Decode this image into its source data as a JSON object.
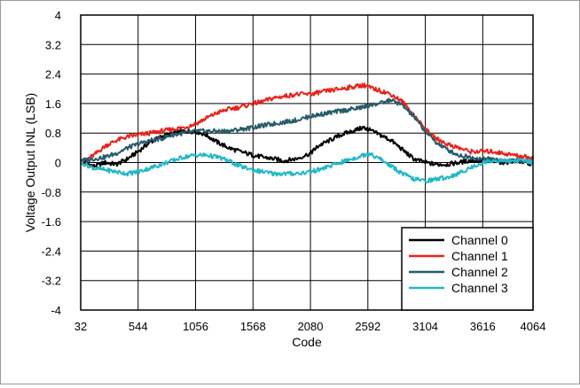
{
  "chart_data": {
    "type": "line",
    "title": "",
    "xlabel": "Code",
    "ylabel": "Voltage Output INL (LSB)",
    "xlim": [
      32,
      4064
    ],
    "ylim": [
      -4,
      4
    ],
    "x_ticks": [
      32,
      544,
      1056,
      1568,
      2080,
      2592,
      3104,
      3616,
      4064
    ],
    "y_ticks": [
      4,
      3.2,
      2.4,
      1.6,
      0.8,
      0,
      -0.8,
      -1.6,
      -2.4,
      -3.2,
      -4
    ],
    "x_tick_labels": [
      "32",
      "544",
      "1056",
      "1568",
      "2080",
      "2592",
      "3104",
      "3616",
      "4064"
    ],
    "y_tick_labels": [
      "4",
      "3.2",
      "2.4",
      "1.6",
      "0.8",
      "0",
      "-0.8",
      "-1.6",
      "-2.4",
      "-3.2",
      "-4"
    ],
    "grid": true,
    "legend_position": "bottom-right",
    "series": [
      {
        "name": "Channel 0",
        "color": "#000000",
        "x": [
          32,
          150,
          250,
          350,
          450,
          544,
          650,
          750,
          850,
          950,
          1056,
          1150,
          1250,
          1350,
          1450,
          1568,
          1650,
          1750,
          1850,
          1950,
          2080,
          2150,
          2250,
          2350,
          2450,
          2550,
          2592,
          2700,
          2800,
          2900,
          3000,
          3104,
          3200,
          3300,
          3400,
          3500,
          3616,
          3700,
          3800,
          3900,
          4000,
          4064
        ],
        "y": [
          0.05,
          -0.1,
          0.0,
          -0.05,
          0.1,
          0.3,
          0.55,
          0.7,
          0.8,
          0.85,
          0.85,
          0.75,
          0.55,
          0.4,
          0.3,
          0.2,
          0.15,
          0.1,
          0.05,
          0.1,
          0.25,
          0.45,
          0.6,
          0.75,
          0.85,
          0.95,
          0.9,
          0.75,
          0.6,
          0.35,
          0.1,
          0.0,
          -0.05,
          -0.05,
          0.0,
          0.05,
          0.05,
          0.05,
          0.0,
          0.05,
          0.0,
          -0.05
        ]
      },
      {
        "name": "Channel 1",
        "color": "#e8231b",
        "x": [
          32,
          150,
          250,
          350,
          450,
          544,
          650,
          750,
          850,
          950,
          1056,
          1150,
          1250,
          1350,
          1450,
          1568,
          1650,
          1750,
          1850,
          1950,
          2080,
          2150,
          2250,
          2350,
          2450,
          2550,
          2592,
          2700,
          2800,
          2900,
          3000,
          3104,
          3200,
          3300,
          3400,
          3500,
          3616,
          3700,
          3800,
          3900,
          4000,
          4064
        ],
        "y": [
          0.0,
          0.2,
          0.45,
          0.6,
          0.7,
          0.75,
          0.8,
          0.85,
          0.9,
          0.95,
          1.05,
          1.2,
          1.35,
          1.45,
          1.5,
          1.6,
          1.65,
          1.75,
          1.8,
          1.85,
          1.85,
          1.9,
          1.95,
          2.0,
          2.05,
          2.1,
          2.05,
          1.95,
          1.85,
          1.65,
          1.3,
          0.9,
          0.65,
          0.5,
          0.4,
          0.3,
          0.3,
          0.3,
          0.25,
          0.2,
          0.15,
          0.1
        ]
      },
      {
        "name": "Channel 2",
        "color": "#265b6a",
        "x": [
          32,
          150,
          250,
          350,
          450,
          544,
          650,
          750,
          850,
          950,
          1056,
          1150,
          1250,
          1350,
          1450,
          1568,
          1650,
          1750,
          1850,
          1950,
          2080,
          2150,
          2250,
          2350,
          2450,
          2550,
          2592,
          2700,
          2800,
          2900,
          3000,
          3104,
          3200,
          3300,
          3400,
          3500,
          3616,
          3700,
          3800,
          3900,
          4000,
          4064
        ],
        "y": [
          0.05,
          0.1,
          0.15,
          0.25,
          0.4,
          0.5,
          0.6,
          0.65,
          0.75,
          0.8,
          0.85,
          0.85,
          0.85,
          0.85,
          0.9,
          0.95,
          1.0,
          1.05,
          1.1,
          1.15,
          1.25,
          1.3,
          1.35,
          1.4,
          1.45,
          1.5,
          1.55,
          1.6,
          1.7,
          1.55,
          1.25,
          0.85,
          0.55,
          0.35,
          0.2,
          0.15,
          0.1,
          0.1,
          0.05,
          0.05,
          0.05,
          0.0
        ]
      },
      {
        "name": "Channel 3",
        "color": "#22b8c8",
        "x": [
          32,
          150,
          250,
          350,
          450,
          544,
          650,
          750,
          850,
          950,
          1056,
          1150,
          1250,
          1350,
          1450,
          1568,
          1650,
          1750,
          1850,
          1950,
          2080,
          2150,
          2250,
          2350,
          2450,
          2550,
          2592,
          2700,
          2800,
          2900,
          3000,
          3104,
          3200,
          3300,
          3400,
          3500,
          3616,
          3700,
          3800,
          3900,
          4000,
          4064
        ],
        "y": [
          0.0,
          -0.15,
          -0.2,
          -0.25,
          -0.3,
          -0.25,
          -0.15,
          -0.05,
          0.05,
          0.15,
          0.2,
          0.2,
          0.15,
          0.05,
          -0.1,
          -0.2,
          -0.25,
          -0.3,
          -0.3,
          -0.3,
          -0.25,
          -0.2,
          -0.1,
          0.0,
          0.1,
          0.2,
          0.25,
          0.1,
          -0.1,
          -0.3,
          -0.45,
          -0.5,
          -0.45,
          -0.4,
          -0.3,
          -0.15,
          0.0,
          0.05,
          0.05,
          0.05,
          0.05,
          0.0
        ]
      }
    ]
  }
}
